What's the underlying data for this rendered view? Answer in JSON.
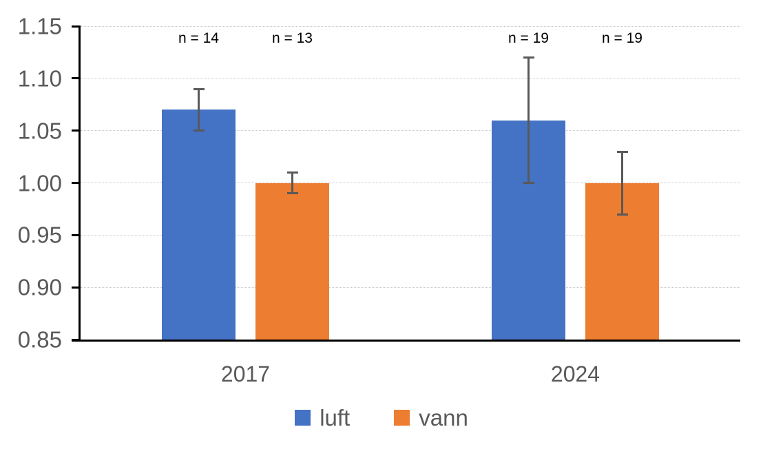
{
  "chart_data": {
    "type": "bar",
    "categories": [
      "2017",
      "2024"
    ],
    "series": [
      {
        "name": "luft",
        "color": "#4472C4",
        "values": [
          1.07,
          1.06
        ],
        "error_low": [
          1.05,
          1.0
        ],
        "error_high": [
          1.09,
          1.12
        ]
      },
      {
        "name": "vann",
        "color": "#ED7D31",
        "values": [
          1.0,
          1.0
        ],
        "error_low": [
          0.99,
          0.97
        ],
        "error_high": [
          1.01,
          1.03
        ]
      }
    ],
    "annotations": [
      {
        "text": "n = 14",
        "category_index": 0,
        "series_index": 0
      },
      {
        "text": "n = 13",
        "category_index": 0,
        "series_index": 1
      },
      {
        "text": "n = 19",
        "category_index": 1,
        "series_index": 0
      },
      {
        "text": "n = 19",
        "category_index": 1,
        "series_index": 1
      }
    ],
    "ylim": [
      0.85,
      1.15
    ],
    "ytick_step": 0.05,
    "ytick_labels": [
      "0.85",
      "0.90",
      "0.95",
      "1.00",
      "1.05",
      "1.10",
      "1.15"
    ],
    "grid": true,
    "legend_position": "bottom",
    "colors": {
      "gridline": "#C9C9C9",
      "axis_line": "#000000",
      "tick_text": "#595959",
      "category_text": "#595959",
      "legend_text": "#595959",
      "annotation_text": "#000000",
      "error_bar": "#595959"
    }
  }
}
